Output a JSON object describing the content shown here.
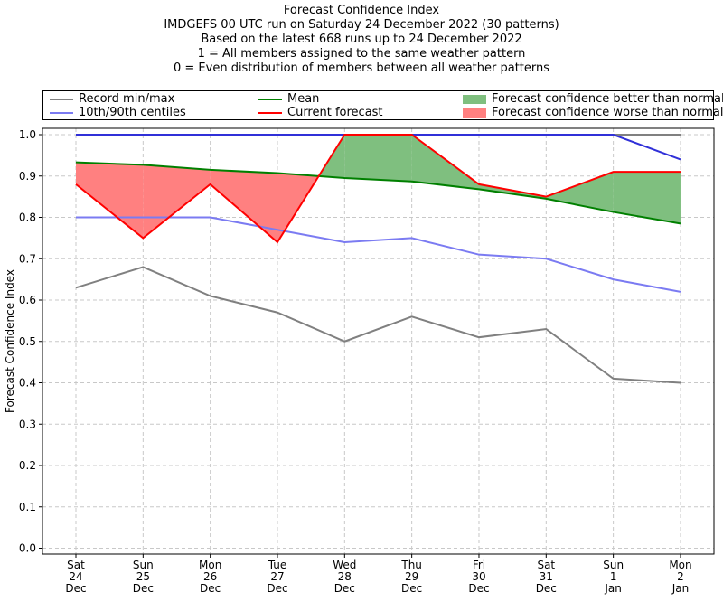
{
  "titles": {
    "line1": "Forecast Confidence Index",
    "line2": "IMDGEFS 00 UTC run on Saturday 24 December 2022 (30 patterns)",
    "line3": "Based on the latest 668 runs up to 24 December 2022",
    "line4": "1 = All members assigned to the same weather pattern",
    "line5": "0 = Even distribution of members between all weather patterns"
  },
  "legend": {
    "record": "Record min/max",
    "centiles": "10th/90th centiles",
    "mean": "Mean",
    "current": "Current forecast",
    "better": "Forecast confidence better than normal",
    "worse": "Forecast confidence worse than normal"
  },
  "colors": {
    "record": "#808080",
    "centiles": "#7b7bf2",
    "max_line": "#3030d8",
    "mean": "#008000",
    "current": "#ff0000",
    "better_fill": "#7fbf7f",
    "worse_fill": "#ff8080"
  },
  "chart_data": {
    "type": "line",
    "ylabel": "Forecast Confidence Index",
    "ylim": [
      0,
      1
    ],
    "yticks": [
      "0.0",
      "0.1",
      "0.2",
      "0.3",
      "0.4",
      "0.5",
      "0.6",
      "0.7",
      "0.8",
      "0.9",
      "1.0"
    ],
    "grid": true,
    "legend_placement": "top, above plot",
    "categories": [
      [
        "Sat",
        "24",
        "Dec"
      ],
      [
        "Sun",
        "25",
        "Dec"
      ],
      [
        "Mon",
        "26",
        "Dec"
      ],
      [
        "Tue",
        "27",
        "Dec"
      ],
      [
        "Wed",
        "28",
        "Dec"
      ],
      [
        "Thu",
        "29",
        "Dec"
      ],
      [
        "Fri",
        "30",
        "Dec"
      ],
      [
        "Sat",
        "31",
        "Dec"
      ],
      [
        "Sun",
        "1",
        "Jan"
      ],
      [
        "Mon",
        "2",
        "Jan"
      ]
    ],
    "series": [
      {
        "name": "Record min/max",
        "key": "record_min",
        "values": [
          0.63,
          0.68,
          0.61,
          0.57,
          0.5,
          0.56,
          0.51,
          0.53,
          0.41,
          0.4
        ]
      },
      {
        "name": "Record min/max",
        "key": "record_max",
        "values": [
          1.0,
          1.0,
          1.0,
          1.0,
          1.0,
          1.0,
          1.0,
          1.0,
          1.0,
          1.0
        ]
      },
      {
        "name": "10th/90th centiles",
        "key": "p10",
        "values": [
          0.8,
          0.8,
          0.8,
          0.77,
          0.74,
          0.75,
          0.71,
          0.7,
          0.65,
          0.62
        ]
      },
      {
        "name": "10th/90th centiles",
        "key": "p90",
        "values": [
          1.0,
          1.0,
          1.0,
          1.0,
          1.0,
          1.0,
          1.0,
          1.0,
          1.0,
          0.94
        ]
      },
      {
        "name": "Mean",
        "key": "mean",
        "values": [
          0.933,
          0.927,
          0.915,
          0.907,
          0.895,
          0.887,
          0.868,
          0.845,
          0.813,
          0.785
        ]
      },
      {
        "name": "Current forecast",
        "key": "current",
        "values": [
          0.88,
          0.75,
          0.88,
          0.74,
          1.0,
          1.0,
          0.88,
          0.85,
          0.91,
          0.91
        ]
      }
    ]
  }
}
